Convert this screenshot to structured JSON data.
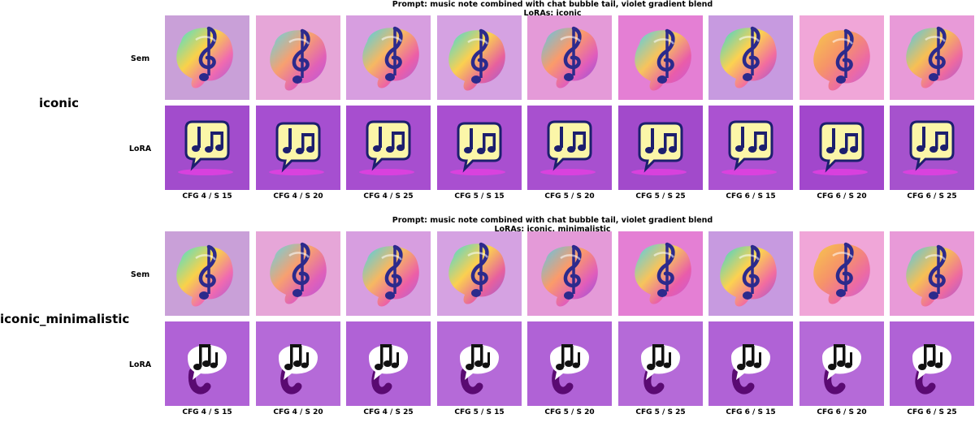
{
  "blocks": [
    {
      "prompt": "Prompt: music note combined with chat bubble tail, violet gradient blend",
      "loras": "LoRAs: iconic",
      "title": "iconic",
      "row_labels": [
        "Sem",
        "LoRA"
      ],
      "lora_style": "yellow-bubble"
    },
    {
      "prompt": "Prompt: music note combined with chat bubble tail, violet gradient blend",
      "loras": "LoRAs: iconic, minimalistic",
      "title": "iconic_minimalistic",
      "row_labels": [
        "Sem",
        "LoRA"
      ],
      "lora_style": "white-bubble"
    }
  ],
  "columns": [
    "CFG 4 / S 15",
    "CFG 4 / S 20",
    "CFG 4 / S 25",
    "CFG 5 / S 15",
    "CFG 5 / S 20",
    "CFG 5 / S 25",
    "CFG 6 / S 15",
    "CFG 6 / S 20",
    "CFG 6 / S 25"
  ],
  "colors": {
    "violet_bg": "#a24ccc",
    "violet_light": "#b56ad8",
    "magenta": "#e23fe0",
    "yellow_bubble": "#fbf6a8",
    "navy": "#1c1f6e",
    "pink_bg": "#f0a6d8"
  }
}
